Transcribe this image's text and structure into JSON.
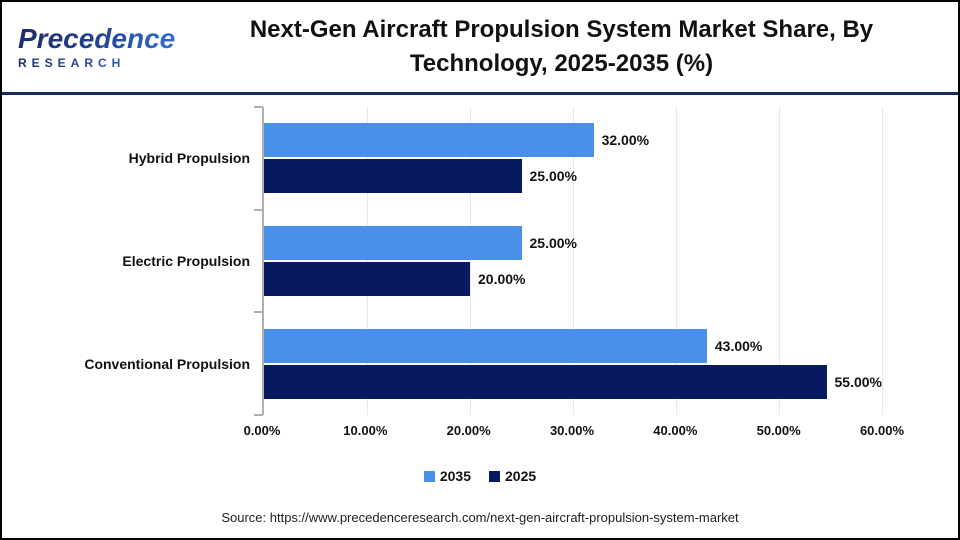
{
  "header": {
    "logo_brand": "Precedence",
    "logo_sub": "RESEARCH",
    "title": "Next-Gen Aircraft Propulsion System Market Share, By Technology, 2025-2035 (%)"
  },
  "chart_data": {
    "type": "bar",
    "orientation": "horizontal",
    "title": "Next-Gen Aircraft Propulsion System Market Share, By Technology, 2025-2035 (%)",
    "categories": [
      "Hybrid Propulsion",
      "Electric Propulsion",
      "Conventional Propulsion"
    ],
    "series": [
      {
        "name": "2035",
        "color": "#4A90E8",
        "values": [
          32,
          25,
          43
        ],
        "labels": [
          "32.00%",
          "25.00%",
          "43.00%"
        ]
      },
      {
        "name": "2025",
        "color": "#07195F",
        "values": [
          25,
          20,
          55
        ],
        "labels": [
          "25.00%",
          "20.00%",
          "55.00%"
        ]
      }
    ],
    "xlim": [
      0,
      60
    ],
    "x_ticks": [
      {
        "value": 0,
        "label": "0.00%"
      },
      {
        "value": 10,
        "label": "10.00%"
      },
      {
        "value": 20,
        "label": "20.00%"
      },
      {
        "value": 30,
        "label": "30.00%"
      },
      {
        "value": 40,
        "label": "40.00%"
      },
      {
        "value": 50,
        "label": "50.00%"
      },
      {
        "value": 60,
        "label": "60.00%"
      }
    ],
    "grid": true,
    "legend_position": "bottom"
  },
  "footer": {
    "source": "Source: https://www.precedenceresearch.com/next-gen-aircraft-propulsion-system-market"
  },
  "colors": {
    "series_2035": "#4A90E8",
    "series_2025": "#07195F",
    "divider": "#1b2a5e",
    "axis": "#b0b0b0",
    "gridline": "#e9e9e9",
    "border": "#000000"
  }
}
